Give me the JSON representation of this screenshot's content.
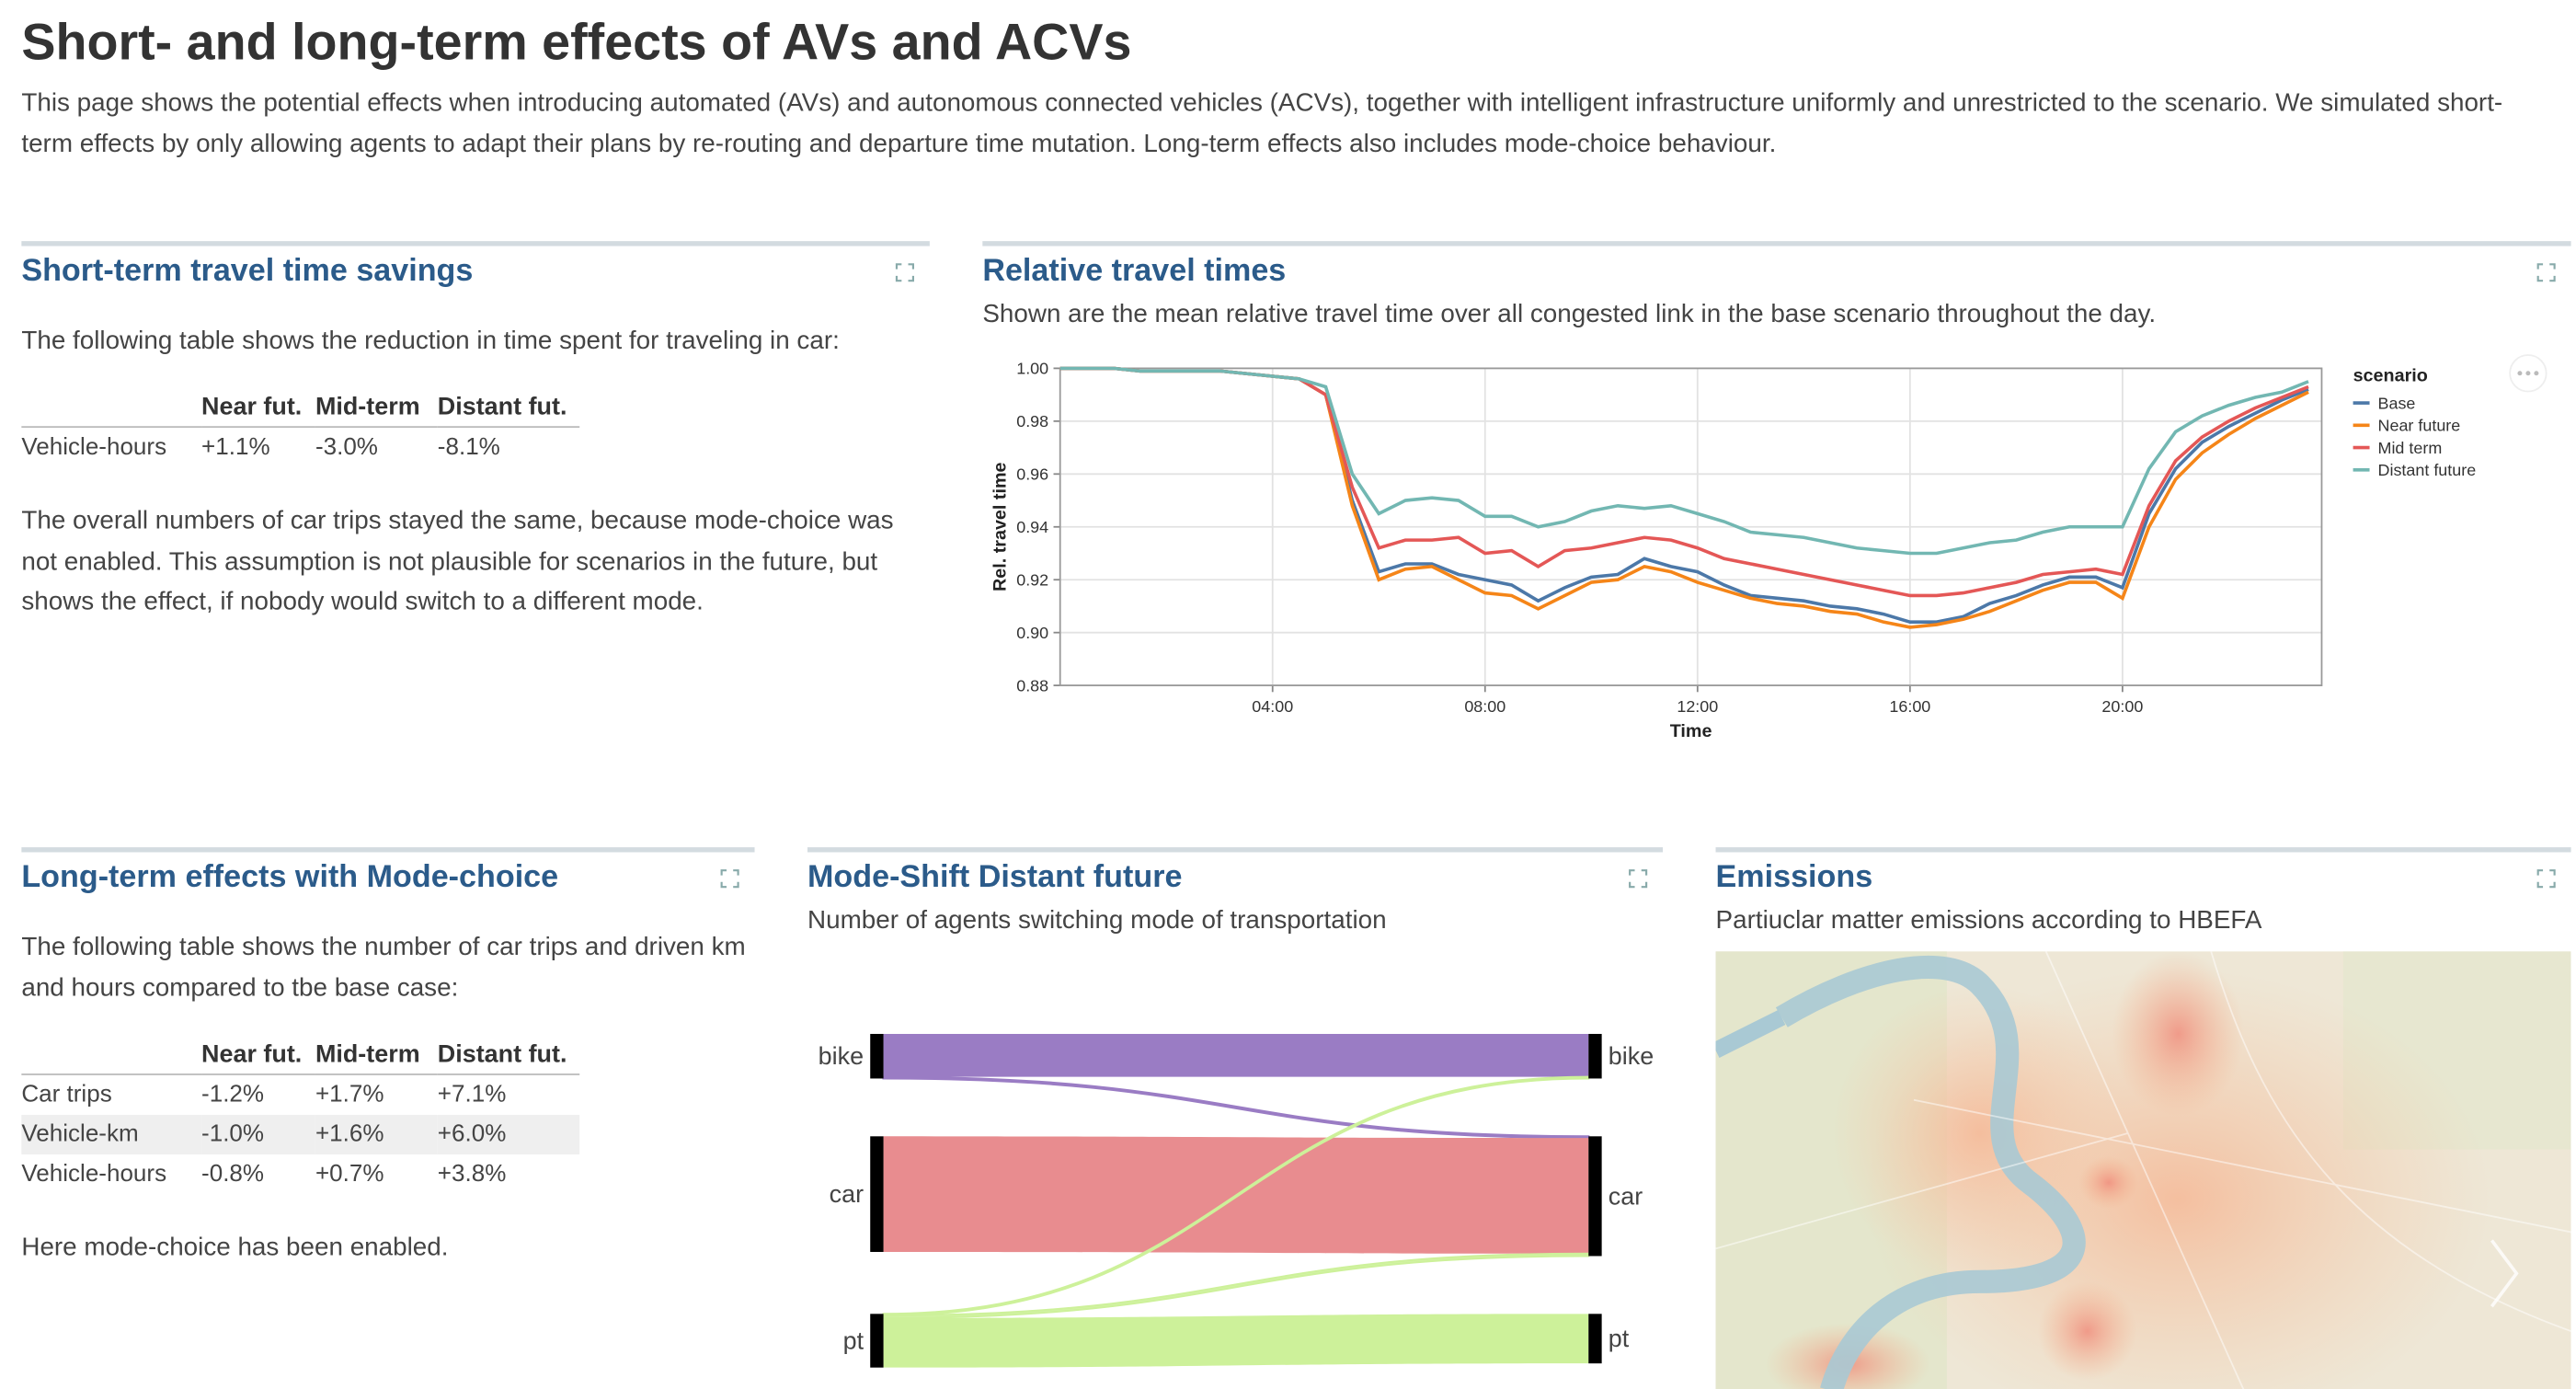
{
  "header": {
    "title": "Short- and long-term effects of AVs and ACVs",
    "description": "This page shows the potential effects when introducing automated (AVs) and autonomous connected vehicles (ACVs), together with intelligent infrastructure uniformly and unrestricted to the scenario. We simulated short-term effects by only allowing agents to adapt their plans by re-routing and departure time mutation. Long-term effects also includes mode-choice behaviour."
  },
  "panels": {
    "short_term": {
      "title": "Short-term travel time savings",
      "intro": "The following table shows the reduction in time spent for traveling in car:",
      "table": {
        "columns": [
          "Near fut.",
          "Mid-term",
          "Distant fut."
        ],
        "rows": [
          [
            "Vehicle-hours",
            "+1.1%",
            "-3.0%",
            "-8.1%"
          ]
        ]
      },
      "note": "The overall numbers of car trips stayed the same, because mode-choice was not enabled. This assumption is not plausible for scenarios in the future, but shows the effect, if nobody would switch to a different mode."
    },
    "relative": {
      "title": "Relative travel times",
      "subtitle": "Shown are the mean relative travel time over all congested link in the base scenario throughout the day."
    },
    "long_term": {
      "title": "Long-term effects with Mode-choice",
      "intro": "The following table shows the number of car trips and driven km and hours compared to tbe base case:",
      "table": {
        "columns": [
          "Near fut.",
          "Mid-term",
          "Distant fut."
        ],
        "rows": [
          [
            "Car trips",
            "-1.2%",
            "+1.7%",
            "+7.1%"
          ],
          [
            "Vehicle-km",
            "-1.0%",
            "+1.6%",
            "+6.0%"
          ],
          [
            "Vehicle-hours",
            "-0.8%",
            "+0.7%",
            "+3.8%"
          ]
        ]
      },
      "note": "Here mode-choice has been enabled."
    },
    "mode_shift": {
      "title": "Mode-Shift Distant future",
      "subtitle": "Number of agents switching mode of transportation"
    },
    "emissions": {
      "title": "Emissions",
      "subtitle": "Partiuclar matter emissions according to HBEFA"
    }
  },
  "chart_data": [
    {
      "type": "line",
      "xlabel": "Time",
      "ylabel": "Rel. travel time",
      "legend_title": "scenario",
      "legend": "right",
      "grid": true,
      "x": [
        0,
        0.5,
        1,
        1.5,
        2,
        2.5,
        3,
        3.5,
        4,
        4.5,
        5,
        5.5,
        6,
        6.5,
        7,
        7.5,
        8,
        8.5,
        9,
        9.5,
        10,
        10.5,
        11,
        11.5,
        12,
        12.5,
        13,
        13.5,
        14,
        14.5,
        15,
        15.5,
        16,
        16.5,
        17,
        17.5,
        18,
        18.5,
        19,
        19.5,
        20,
        20.5,
        21,
        21.5,
        22,
        22.5,
        23,
        23.5
      ],
      "xlim": [
        0,
        23.75
      ],
      "xticks": [
        {
          "value": 4,
          "label": "04:00"
        },
        {
          "value": 8,
          "label": "08:00"
        },
        {
          "value": 12,
          "label": "12:00"
        },
        {
          "value": 16,
          "label": "16:00"
        },
        {
          "value": 20,
          "label": "20:00"
        }
      ],
      "ylim": [
        0.88,
        1.0
      ],
      "yticks": [
        0.88,
        {
          "value": 0.9,
          "label": "0.90"
        },
        0.92,
        0.94,
        0.96,
        0.98,
        {
          "value": 1.0,
          "label": "1.00"
        }
      ],
      "series": [
        {
          "name": "Base",
          "color": "#4c78a8",
          "values": [
            1.0,
            1.0,
            1.0,
            0.999,
            0.999,
            0.999,
            0.999,
            0.998,
            0.997,
            0.996,
            0.99,
            0.95,
            0.923,
            0.926,
            0.926,
            0.922,
            0.92,
            0.918,
            0.912,
            0.917,
            0.921,
            0.922,
            0.928,
            0.925,
            0.923,
            0.918,
            0.914,
            0.913,
            0.912,
            0.91,
            0.909,
            0.907,
            0.904,
            0.904,
            0.906,
            0.911,
            0.914,
            0.918,
            0.921,
            0.921,
            0.917,
            0.945,
            0.962,
            0.972,
            0.978,
            0.983,
            0.988,
            0.992
          ]
        },
        {
          "name": "Near future",
          "color": "#f58518",
          "values": [
            1.0,
            1.0,
            1.0,
            0.999,
            0.999,
            0.999,
            0.999,
            0.998,
            0.997,
            0.996,
            0.99,
            0.948,
            0.92,
            0.924,
            0.925,
            0.92,
            0.915,
            0.914,
            0.909,
            0.914,
            0.919,
            0.92,
            0.925,
            0.923,
            0.919,
            0.916,
            0.913,
            0.911,
            0.91,
            0.908,
            0.907,
            0.904,
            0.902,
            0.903,
            0.905,
            0.908,
            0.912,
            0.916,
            0.919,
            0.919,
            0.913,
            0.94,
            0.958,
            0.968,
            0.975,
            0.981,
            0.986,
            0.991
          ]
        },
        {
          "name": "Mid term",
          "color": "#e45756",
          "values": [
            1.0,
            1.0,
            1.0,
            0.999,
            0.999,
            0.999,
            0.999,
            0.998,
            0.997,
            0.996,
            0.99,
            0.955,
            0.932,
            0.935,
            0.935,
            0.936,
            0.93,
            0.931,
            0.925,
            0.931,
            0.932,
            0.934,
            0.936,
            0.935,
            0.932,
            0.928,
            0.926,
            0.924,
            0.922,
            0.92,
            0.918,
            0.916,
            0.914,
            0.914,
            0.915,
            0.917,
            0.919,
            0.922,
            0.923,
            0.924,
            0.922,
            0.948,
            0.965,
            0.974,
            0.98,
            0.985,
            0.989,
            0.993
          ]
        },
        {
          "name": "Distant future",
          "color": "#72b7b2",
          "values": [
            1.0,
            1.0,
            1.0,
            0.999,
            0.999,
            0.999,
            0.999,
            0.998,
            0.997,
            0.996,
            0.993,
            0.96,
            0.945,
            0.95,
            0.951,
            0.95,
            0.944,
            0.944,
            0.94,
            0.942,
            0.946,
            0.948,
            0.947,
            0.948,
            0.945,
            0.942,
            0.938,
            0.937,
            0.936,
            0.934,
            0.932,
            0.931,
            0.93,
            0.93,
            0.932,
            0.934,
            0.935,
            0.938,
            0.94,
            0.94,
            0.94,
            0.962,
            0.976,
            0.982,
            0.986,
            0.989,
            0.991,
            0.995
          ]
        }
      ]
    },
    {
      "type": "sankey",
      "nodes": [
        "bike",
        "car",
        "pt"
      ],
      "colors": [
        "#9a7cc4",
        "#e88c8f",
        "#cdf19a"
      ],
      "links": [
        {
          "source": 0,
          "target": 0,
          "value": 26
        },
        {
          "source": 0,
          "target": 1,
          "value": 1
        },
        {
          "source": 1,
          "target": 1,
          "value": 70
        },
        {
          "source": 2,
          "target": 0,
          "value": 1
        },
        {
          "source": 2,
          "target": 1,
          "value": 1.5
        },
        {
          "source": 2,
          "target": 2,
          "value": 30
        }
      ]
    }
  ]
}
